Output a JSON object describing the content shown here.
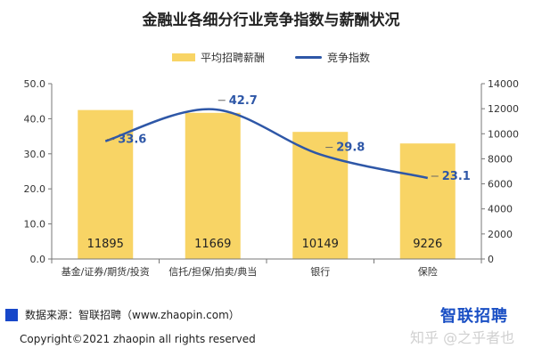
{
  "chart_data": {
    "type": "bar",
    "title": "金融业各细分行业竞争指数与薪酬状况",
    "categories": [
      "基金/证券/期货/投资",
      "信托/担保/拍卖/典当",
      "银行",
      "保险"
    ],
    "series": [
      {
        "name": "平均招聘薪酬",
        "type": "bar",
        "axis": "right",
        "values": [
          11895,
          11669,
          10149,
          9226
        ],
        "color": "#f8d465"
      },
      {
        "name": "竞争指数",
        "type": "line",
        "axis": "left",
        "values": [
          33.6,
          42.7,
          29.8,
          23.1
        ],
        "color": "#2e57a7"
      }
    ],
    "y_left": {
      "ylim": [
        0,
        50
      ],
      "ticks": [
        "0.0",
        "10.0",
        "20.0",
        "30.0",
        "40.0",
        "50.0"
      ]
    },
    "y_right": {
      "ylim": [
        0,
        14000
      ],
      "ticks": [
        "0",
        "2000",
        "4000",
        "6000",
        "8000",
        "10000",
        "12000",
        "14000"
      ]
    },
    "bar_labels": [
      "11895",
      "11669",
      "10149",
      "9226"
    ],
    "line_labels": [
      "33.6",
      "42.7",
      "29.8",
      "23.1"
    ],
    "grid": false,
    "legend_position": "top"
  },
  "footer": {
    "source": "数据来源：智联招聘（www.zhaopin.com）",
    "brand": "智联招聘",
    "copyright": "Copyright©2021 zhaopin all rights reserved",
    "watermark": "知乎 @之乎者也"
  }
}
